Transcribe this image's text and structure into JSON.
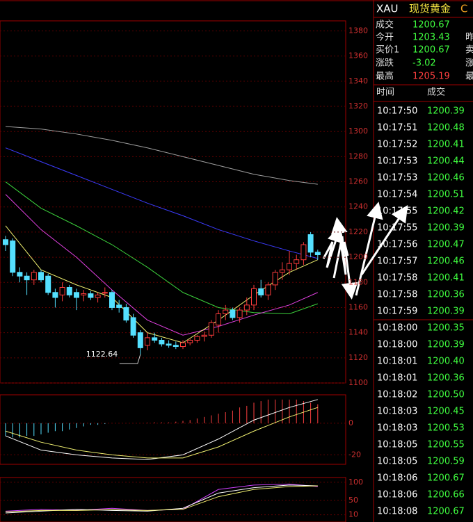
{
  "main_chart": {
    "type": "candlestick",
    "ylim": [
      1100,
      1388
    ],
    "yticks": [
      1100,
      1120,
      1140,
      1160,
      1180,
      1200,
      1220,
      1240,
      1260,
      1280,
      1300,
      1320,
      1340,
      1360,
      1380
    ],
    "candles": [
      [
        1214,
        1217,
        1205,
        1210
      ],
      [
        1213,
        1215,
        1185,
        1188
      ],
      [
        1188,
        1192,
        1180,
        1185
      ],
      [
        1185,
        1188,
        1170,
        1182
      ],
      [
        1182,
        1190,
        1178,
        1188
      ],
      [
        1188,
        1190,
        1180,
        1182
      ],
      [
        1185,
        1187,
        1170,
        1172
      ],
      [
        1172,
        1175,
        1160,
        1168
      ],
      [
        1170,
        1180,
        1165,
        1176
      ],
      [
        1176,
        1178,
        1168,
        1170
      ],
      [
        1172,
        1175,
        1158,
        1168
      ],
      [
        1170,
        1174,
        1165,
        1171
      ],
      [
        1171,
        1173,
        1166,
        1168
      ],
      [
        1168,
        1172,
        1164,
        1170
      ],
      [
        1172,
        1176,
        1168,
        1172
      ],
      [
        1172,
        1174,
        1158,
        1160
      ],
      [
        1162,
        1166,
        1156,
        1160
      ],
      [
        1160,
        1163,
        1148,
        1150
      ],
      [
        1152,
        1155,
        1136,
        1138
      ],
      [
        1140,
        1142,
        1122.64,
        1128
      ],
      [
        1130,
        1140,
        1126,
        1136
      ],
      [
        1136,
        1140,
        1132,
        1134
      ],
      [
        1134,
        1136,
        1129,
        1131
      ],
      [
        1131,
        1134,
        1128,
        1130
      ],
      [
        1130,
        1133,
        1127,
        1129
      ],
      [
        1129,
        1134,
        1127,
        1132
      ],
      [
        1132,
        1135,
        1130,
        1134
      ],
      [
        1134,
        1138,
        1132,
        1137
      ],
      [
        1137,
        1141,
        1133,
        1138
      ],
      [
        1138,
        1150,
        1136,
        1148
      ],
      [
        1146,
        1158,
        1140,
        1155
      ],
      [
        1155,
        1162,
        1150,
        1158
      ],
      [
        1158,
        1160,
        1150,
        1152
      ],
      [
        1152,
        1160,
        1148,
        1158
      ],
      [
        1158,
        1168,
        1154,
        1162
      ],
      [
        1162,
        1178,
        1158,
        1175
      ],
      [
        1175,
        1182,
        1168,
        1170
      ],
      [
        1170,
        1180,
        1166,
        1178
      ],
      [
        1178,
        1190,
        1174,
        1188
      ],
      [
        1188,
        1196,
        1182,
        1190
      ],
      [
        1190,
        1205,
        1186,
        1195
      ],
      [
        1195,
        1202,
        1190,
        1198
      ],
      [
        1198,
        1212,
        1194,
        1210
      ],
      [
        1218,
        1220,
        1200,
        1204
      ],
      [
        1204,
        1206,
        1198,
        1202
      ]
    ],
    "up_color": "#ff3c3c",
    "down_color": "#54e0ff",
    "moving_averages": {
      "x": [
        0,
        5,
        10,
        15,
        20,
        25,
        30,
        35,
        40,
        44
      ],
      "series": [
        {
          "color": "#a0a0a0",
          "values": [
            1304,
            1302,
            1298,
            1293,
            1287,
            1280,
            1273,
            1266,
            1261,
            1258
          ]
        },
        {
          "color": "#3c3cff",
          "values": [
            1287,
            1276,
            1265,
            1254,
            1243,
            1233,
            1222,
            1213,
            1205,
            1199
          ]
        },
        {
          "color": "#3cd23c",
          "values": [
            1260,
            1239,
            1225,
            1210,
            1192,
            1172,
            1160,
            1156,
            1155,
            1163
          ]
        },
        {
          "color": "#e040e0",
          "values": [
            1250,
            1222,
            1200,
            1174,
            1150,
            1138,
            1145,
            1154,
            1162,
            1172
          ]
        },
        {
          "color": "#f0f070",
          "values": [
            1225,
            1190,
            1178,
            1168,
            1140,
            1132,
            1150,
            1170,
            1188,
            1198
          ]
        }
      ]
    },
    "annotation": "1122.64"
  },
  "macd_panel": {
    "ylim": [
      -26,
      18
    ],
    "yticks": [
      0,
      -20
    ],
    "bars": [
      -8,
      -9,
      -9,
      -8,
      -8,
      -7,
      -6,
      -5,
      -5,
      -4,
      -3,
      -2,
      -1,
      -1,
      -0.5,
      0,
      0,
      0,
      0,
      0,
      0.3,
      0.5,
      0.5,
      0.5,
      1,
      1.5,
      2,
      3,
      4,
      5,
      6,
      7,
      8,
      10,
      11,
      13,
      14,
      15,
      15,
      15,
      15,
      15,
      14,
      13,
      12
    ],
    "up_color": "#ff4040",
    "down_color": "#54e0ff",
    "x": [
      0,
      5,
      10,
      15,
      20,
      25,
      30,
      35,
      40,
      44
    ],
    "series": [
      {
        "color": "#ffffff",
        "values": [
          -8,
          -17,
          -20,
          -22,
          -23,
          -20,
          -10,
          2,
          10,
          15
        ]
      },
      {
        "color": "#f0f070",
        "values": [
          -5,
          -12,
          -17,
          -20,
          -22,
          -22,
          -15,
          -5,
          4,
          10
        ]
      }
    ]
  },
  "oscillator_panel": {
    "ylim": [
      -10,
      113
    ],
    "yticks": [
      100,
      50,
      10
    ],
    "x": [
      0,
      5,
      10,
      15,
      20,
      25,
      30,
      35,
      40,
      44
    ],
    "series": [
      {
        "color": "#d040ff",
        "values": [
          20,
          25,
          22,
          28,
          22,
          25,
          80,
          92,
          95,
          88
        ]
      },
      {
        "color": "#ffffff",
        "values": [
          15,
          20,
          25,
          22,
          20,
          28,
          70,
          85,
          92,
          90
        ]
      },
      {
        "color": "#f0f070",
        "values": [
          18,
          22,
          22,
          24,
          22,
          25,
          60,
          80,
          88,
          90
        ]
      }
    ]
  },
  "quote": {
    "symbol": "XAU",
    "name": "现货黄金",
    "extra": "C",
    "rows": [
      {
        "label": "成交",
        "value": "1200.67",
        "more": ""
      },
      {
        "label": "今开",
        "value": "1203.43",
        "more": "昨"
      },
      {
        "label": "买价1",
        "value": "1200.67",
        "more": "卖"
      },
      {
        "label": "涨跌",
        "value": "-3.02",
        "more": "涨"
      },
      {
        "label": "最高",
        "value": "1205.19",
        "more": "最"
      }
    ]
  },
  "ticks": {
    "headers": [
      "时间",
      "成交"
    ],
    "rows": [
      [
        "10:17:50",
        "1200.39"
      ],
      [
        "10:17:51",
        "1200.48"
      ],
      [
        "10:17:52",
        "1200.41"
      ],
      [
        "10:17:53",
        "1200.44"
      ],
      [
        "10:17:53",
        "1200.46"
      ],
      [
        "10:17:54",
        "1200.51"
      ],
      [
        "10:17:55",
        "1200.42"
      ],
      [
        "10:17:55",
        "1200.39"
      ],
      [
        "10:17:56",
        "1200.47"
      ],
      [
        "10:17:57",
        "1200.46"
      ],
      [
        "10:17:58",
        "1200.41"
      ],
      [
        "10:17:58",
        "1200.36"
      ],
      [
        "10:17:59",
        "1200.39"
      ],
      [
        "10:18:00",
        "1200.35"
      ],
      [
        "10:18:00",
        "1200.39"
      ],
      [
        "10:18:01",
        "1200.40"
      ],
      [
        "10:18:01",
        "1200.36"
      ],
      [
        "10:18:02",
        "1200.50"
      ],
      [
        "10:18:03",
        "1200.45"
      ],
      [
        "10:18:03",
        "1200.53"
      ],
      [
        "10:18:05",
        "1200.55"
      ],
      [
        "10:18:05",
        "1200.59"
      ],
      [
        "10:18:06",
        "1200.67"
      ],
      [
        "10:18:06",
        "1200.66"
      ],
      [
        "10:18:08",
        "1200.67"
      ]
    ]
  }
}
